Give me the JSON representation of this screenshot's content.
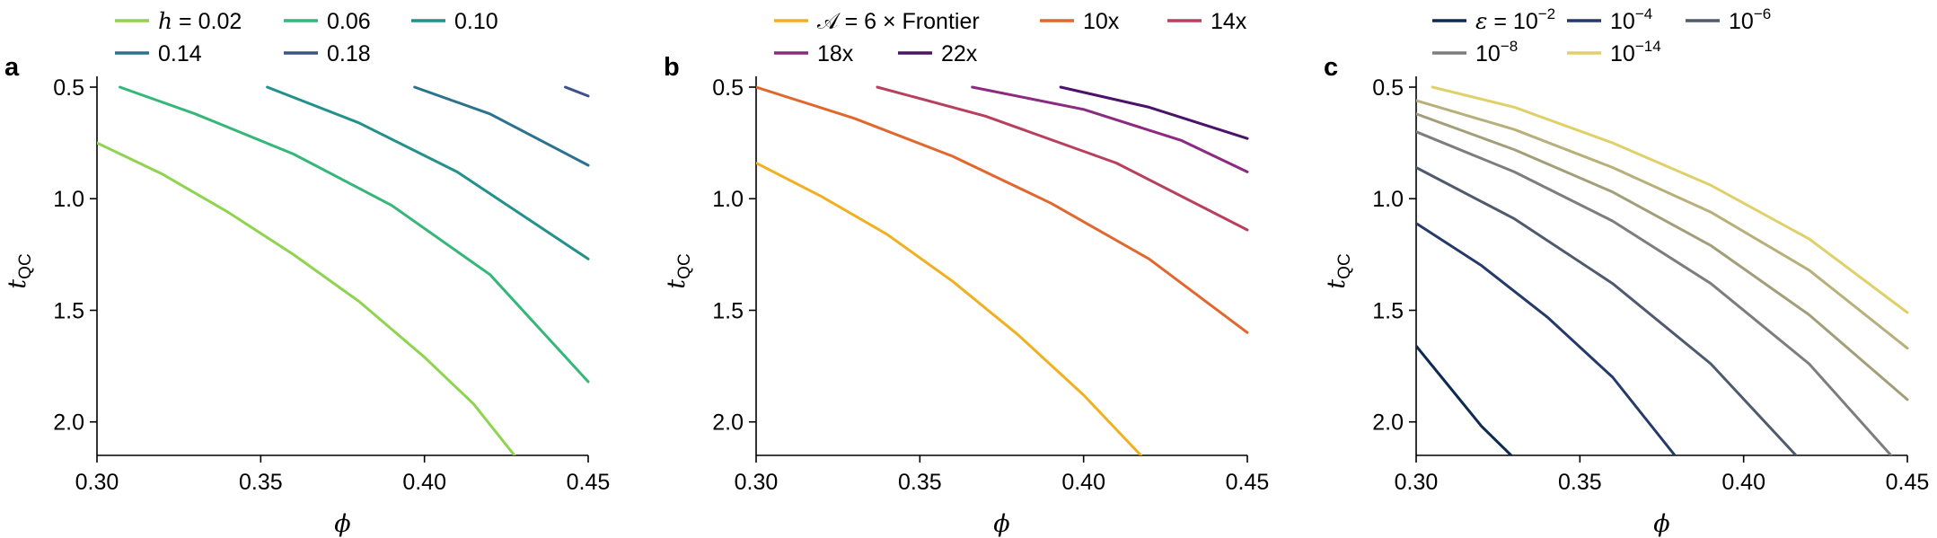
{
  "chart_data": [
    {
      "type": "line",
      "panel_label": "a",
      "xlabel": "ϕ",
      "ylabel": "t",
      "ylabel_sub": "QC",
      "xlim": [
        0.3,
        0.45
      ],
      "ylim": [
        0.5,
        2.15
      ],
      "y_inverted": true,
      "xticks": [
        "0.30",
        "0.35",
        "0.40",
        "0.45"
      ],
      "yticks": [
        "0.5",
        "1.0",
        "1.5",
        "2.0"
      ],
      "legend_placement": "top",
      "legend_prefix": "h = ",
      "series": [
        {
          "name": "0.02",
          "color": "#8fd44f",
          "x": [
            0.3,
            0.32,
            0.34,
            0.36,
            0.38,
            0.4,
            0.415,
            0.4275
          ],
          "y": [
            0.75,
            0.89,
            1.06,
            1.25,
            1.46,
            1.71,
            1.92,
            2.15
          ]
        },
        {
          "name": "0.06",
          "color": "#35b779",
          "x": [
            0.307,
            0.33,
            0.36,
            0.39,
            0.42,
            0.45
          ],
          "y": [
            0.5,
            0.62,
            0.8,
            1.03,
            1.34,
            1.82
          ]
        },
        {
          "name": "0.10",
          "color": "#21918c",
          "x": [
            0.352,
            0.38,
            0.41,
            0.45
          ],
          "y": [
            0.5,
            0.66,
            0.88,
            1.27
          ]
        },
        {
          "name": "0.14",
          "color": "#2c728e",
          "x": [
            0.397,
            0.42,
            0.45
          ],
          "y": [
            0.5,
            0.62,
            0.85
          ]
        },
        {
          "name": "0.18",
          "color": "#3b528b",
          "x": [
            0.443,
            0.45
          ],
          "y": [
            0.5,
            0.54
          ]
        }
      ]
    },
    {
      "type": "line",
      "panel_label": "b",
      "xlabel": "ϕ",
      "ylabel": "t",
      "ylabel_sub": "QC",
      "xlim": [
        0.3,
        0.45
      ],
      "ylim": [
        0.5,
        2.15
      ],
      "y_inverted": true,
      "xticks": [
        "0.30",
        "0.35",
        "0.40",
        "0.45"
      ],
      "yticks": [
        "0.5",
        "1.0",
        "1.5",
        "2.0"
      ],
      "legend_placement": "top",
      "legend_prefix": "",
      "series": [
        {
          "name": "𝒜 = 6 × Frontier",
          "color": "#f0b020",
          "x": [
            0.3,
            0.32,
            0.34,
            0.36,
            0.38,
            0.4,
            0.4175
          ],
          "y": [
            0.84,
            0.99,
            1.16,
            1.37,
            1.61,
            1.88,
            2.15
          ]
        },
        {
          "name": "10x",
          "color": "#e0682e",
          "x": [
            0.3,
            0.33,
            0.36,
            0.39,
            0.42,
            0.45
          ],
          "y": [
            0.5,
            0.64,
            0.81,
            1.02,
            1.27,
            1.6
          ]
        },
        {
          "name": "14x",
          "color": "#b8405e",
          "x": [
            0.337,
            0.37,
            0.41,
            0.45
          ],
          "y": [
            0.5,
            0.63,
            0.84,
            1.14
          ]
        },
        {
          "name": "18x",
          "color": "#8c2981",
          "x": [
            0.366,
            0.4,
            0.43,
            0.45
          ],
          "y": [
            0.5,
            0.6,
            0.74,
            0.88
          ]
        },
        {
          "name": "22x",
          "color": "#4a1268",
          "x": [
            0.393,
            0.42,
            0.45
          ],
          "y": [
            0.5,
            0.59,
            0.73
          ]
        }
      ]
    },
    {
      "type": "line",
      "panel_label": "c",
      "xlabel": "ϕ",
      "ylabel": "t",
      "ylabel_sub": "QC",
      "xlim": [
        0.3,
        0.45
      ],
      "ylim": [
        0.5,
        2.15
      ],
      "y_inverted": true,
      "xticks": [
        "0.30",
        "0.35",
        "0.40",
        "0.45"
      ],
      "yticks": [
        "0.5",
        "1.0",
        "1.5",
        "2.0"
      ],
      "legend_placement": "top",
      "legend_prefix": "ε = ",
      "series": [
        {
          "name": "10",
          "sup": "−2",
          "color": "#0d2b52",
          "x": [
            0.3,
            0.31,
            0.32,
            0.329
          ],
          "y": [
            1.66,
            1.84,
            2.02,
            2.15
          ]
        },
        {
          "name": "10",
          "sup": "−4",
          "color": "#253a6b",
          "x": [
            0.3,
            0.32,
            0.34,
            0.36,
            0.379
          ],
          "y": [
            1.11,
            1.3,
            1.53,
            1.8,
            2.15
          ]
        },
        {
          "name": "10",
          "sup": "−6",
          "color": "#4f5a6e",
          "x": [
            0.3,
            0.33,
            0.36,
            0.39,
            0.416
          ],
          "y": [
            0.86,
            1.09,
            1.38,
            1.74,
            2.15
          ]
        },
        {
          "name": "10",
          "sup": "−8",
          "color": "#7d7d7d",
          "x": [
            0.3,
            0.33,
            0.36,
            0.39,
            0.42,
            0.445
          ],
          "y": [
            0.7,
            0.88,
            1.1,
            1.38,
            1.74,
            2.15
          ]
        },
        {
          "name": "",
          "sup": "",
          "color": "#a39e7a",
          "x": [
            0.3,
            0.33,
            0.36,
            0.39,
            0.42,
            0.45
          ],
          "y": [
            0.62,
            0.78,
            0.97,
            1.21,
            1.52,
            1.9
          ]
        },
        {
          "name": "",
          "sup": "",
          "color": "#b8b07a",
          "x": [
            0.3,
            0.33,
            0.36,
            0.39,
            0.42,
            0.45
          ],
          "y": [
            0.56,
            0.69,
            0.86,
            1.06,
            1.32,
            1.67
          ]
        },
        {
          "name": "10",
          "sup": "−14",
          "color": "#e0d06a",
          "x": [
            0.305,
            0.33,
            0.36,
            0.39,
            0.42,
            0.45
          ],
          "y": [
            0.5,
            0.59,
            0.75,
            0.94,
            1.18,
            1.51
          ]
        }
      ]
    }
  ]
}
